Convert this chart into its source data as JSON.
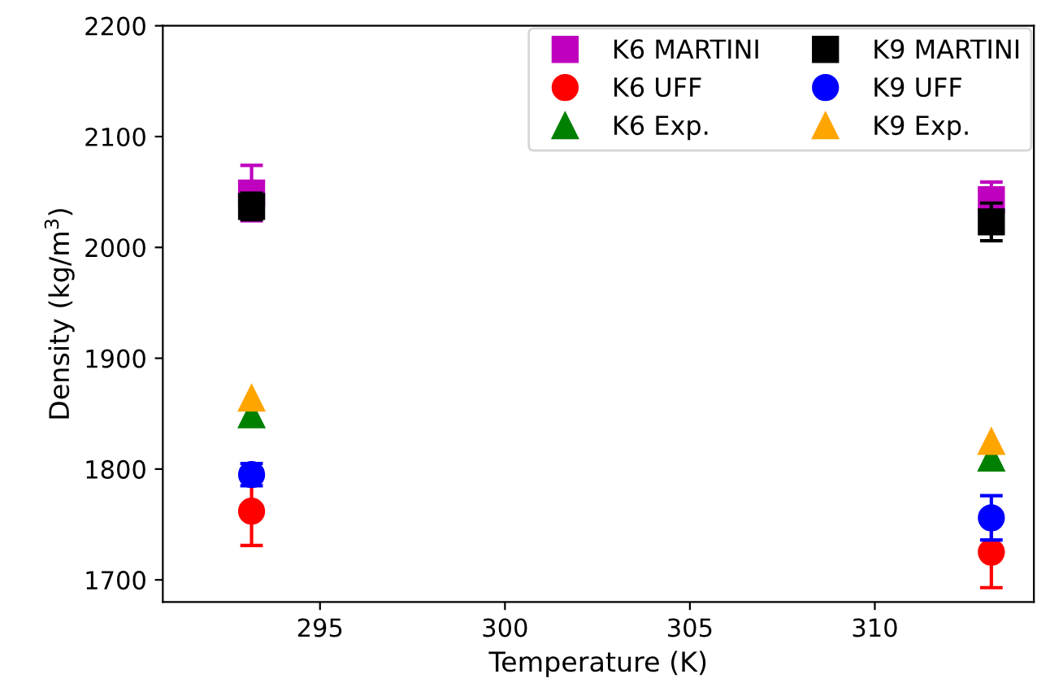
{
  "chart_data": {
    "type": "scatter",
    "xlabel": "Temperature (K)",
    "ylabel": "Density (kg/m$^{3}$)",
    "x": [
      293.15,
      313.15
    ],
    "series": [
      {
        "name": "K6 MARTINI",
        "color": "#bf00bf",
        "marker": "square",
        "values": [
          2049,
          2043
        ],
        "errors": [
          25,
          16
        ]
      },
      {
        "name": "K6 UFF",
        "color": "#ff0000",
        "marker": "circle",
        "values": [
          1762,
          1725
        ],
        "errors": [
          31,
          32
        ]
      },
      {
        "name": "K6 Exp.",
        "color": "#008000",
        "marker": "triangle",
        "values": [
          1849,
          1810
        ]
      },
      {
        "name": "K9 MARTINI",
        "color": "#000000",
        "marker": "square",
        "values": [
          2037,
          2023
        ],
        "errors": [
          12,
          17
        ]
      },
      {
        "name": "K9 UFF",
        "color": "#0000ff",
        "marker": "circle",
        "values": [
          1795,
          1756
        ],
        "errors": [
          10,
          20
        ]
      },
      {
        "name": "K9 Exp.",
        "color": "#ffa500",
        "marker": "triangle",
        "values": [
          1864,
          1825
        ]
      }
    ],
    "xlim": [
      290.75,
      314.3
    ],
    "xticks": [
      295,
      300,
      305,
      310
    ],
    "ylim": [
      1680,
      2200
    ],
    "yticks": [
      1700,
      1800,
      1900,
      2000,
      2100,
      2200
    ],
    "legend": "top right",
    "grid": false
  }
}
